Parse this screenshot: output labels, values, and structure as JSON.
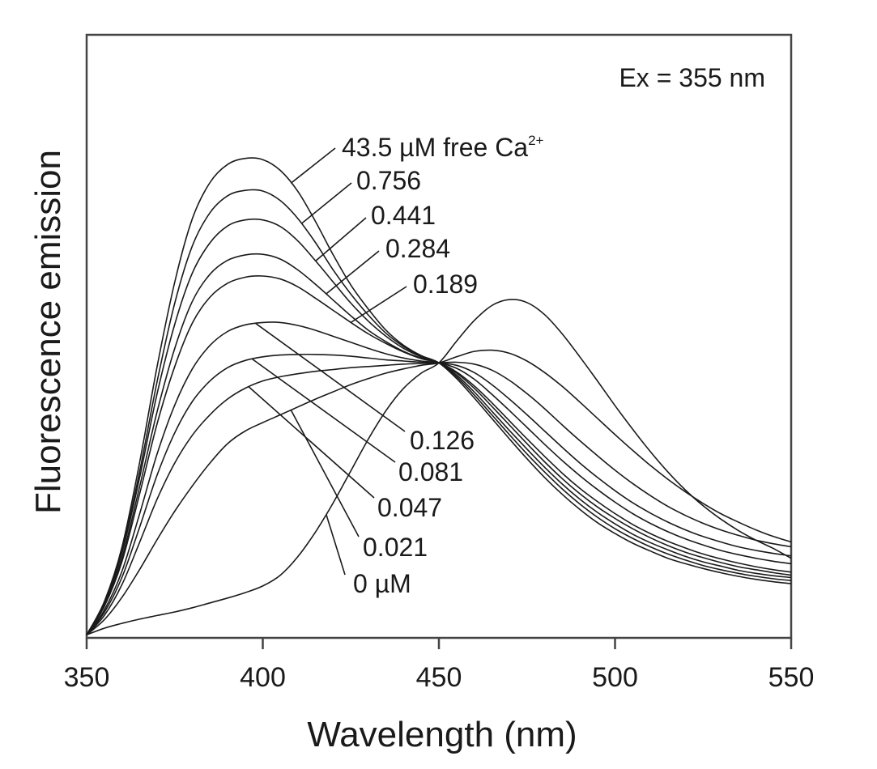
{
  "chart_data": {
    "type": "line",
    "title": "",
    "xlabel": "Wavelength (nm)",
    "ylabel": "Fluorescence emission",
    "xlim": [
      350,
      550
    ],
    "ylim": [
      0,
      100
    ],
    "xticks": [
      350,
      400,
      450,
      500,
      550
    ],
    "xtick_labels": [
      "350",
      "400",
      "450",
      "500",
      "550"
    ],
    "yticks": [],
    "grid": false,
    "annotation": "Ex = 355 nm",
    "line_color": "#1a1a1a",
    "x": [
      350,
      355,
      360,
      365,
      370,
      375,
      380,
      385,
      390,
      395,
      400,
      405,
      410,
      415,
      420,
      425,
      430,
      435,
      440,
      445,
      450,
      455,
      460,
      465,
      470,
      475,
      480,
      485,
      490,
      495,
      500,
      505,
      510,
      515,
      520,
      525,
      530,
      535,
      540,
      545,
      550
    ],
    "series": [
      {
        "name": "43.5 µM free Ca2+",
        "label_main": "43.5 µM free Ca",
        "label_sup": "2+",
        "values": [
          0.5,
          6,
          15,
          29,
          45,
          59,
          69.5,
          75.5,
          78.5,
          79.5,
          79.3,
          77.5,
          74,
          69,
          63.5,
          58.5,
          54.5,
          51,
          48.5,
          46.8,
          45.6,
          43,
          39.8,
          36.4,
          33,
          29.7,
          26.6,
          23.8,
          21.3,
          19.1,
          17.3,
          15.7,
          14.4,
          13.2,
          12.3,
          11.5,
          10.8,
          10.2,
          9.7,
          9.3,
          9
        ]
      },
      {
        "name": "0.756",
        "label_main": "0.756",
        "values": [
          0.5,
          5.8,
          14.5,
          27.5,
          42.5,
          55.5,
          65,
          70.5,
          73.3,
          74.2,
          74.1,
          72.5,
          69.5,
          65.5,
          61,
          57,
          53.5,
          50.5,
          48.3,
          46.7,
          45.6,
          43.3,
          40.3,
          37,
          33.7,
          30.5,
          27.5,
          24.7,
          22.2,
          20,
          18.1,
          16.5,
          15.1,
          13.9,
          12.9,
          12,
          11.3,
          10.7,
          10.2,
          9.8,
          9.5
        ]
      },
      {
        "name": "0.441",
        "label_main": "0.441",
        "values": [
          0.5,
          5.6,
          14,
          26.5,
          40.5,
          52,
          60.5,
          65.5,
          68.3,
          69.3,
          69.3,
          68.2,
          65.8,
          62.5,
          59,
          55.5,
          52.5,
          50,
          48,
          46.6,
          45.6,
          43.6,
          40.8,
          37.6,
          34.4,
          31.3,
          28.3,
          25.5,
          23,
          20.8,
          18.9,
          17.2,
          15.8,
          14.6,
          13.5,
          12.6,
          11.9,
          11.2,
          10.7,
          10.3,
          10
        ]
      },
      {
        "name": "0.284",
        "label_main": "0.284",
        "values": [
          0.5,
          5.4,
          13.2,
          25,
          37.5,
          48,
          55.8,
          60.3,
          62.6,
          63.5,
          63.6,
          62.8,
          61,
          58.6,
          56,
          53.4,
          51,
          49.1,
          47.5,
          46.4,
          45.6,
          43.9,
          41.4,
          38.4,
          35.3,
          32.2,
          29.2,
          26.4,
          23.9,
          21.7,
          19.8,
          18.1,
          16.6,
          15.3,
          14.2,
          13.3,
          12.5,
          11.8,
          11.3,
          10.8,
          10.4
        ]
      },
      {
        "name": "0.189",
        "label_main": "0.189",
        "values": [
          0.5,
          5.2,
          12.6,
          23.8,
          35.5,
          45,
          52.2,
          56.5,
          58.8,
          59.8,
          60,
          59.5,
          58.2,
          56.3,
          54.3,
          52.3,
          50.4,
          48.8,
          47.4,
          46.3,
          45.6,
          44.1,
          41.8,
          39,
          36,
          33,
          30.1,
          27.3,
          24.8,
          22.6,
          20.6,
          18.8,
          17.3,
          16,
          14.9,
          13.9,
          13.1,
          12.4,
          11.8,
          11.3,
          10.9
        ]
      },
      {
        "name": "0.126",
        "label_main": "0.126",
        "values": [
          0.5,
          4.6,
          11,
          20.5,
          30.5,
          38.6,
          44.6,
          48.5,
          50.8,
          51.9,
          52.3,
          52.3,
          51.8,
          51,
          50,
          49,
          48,
          47.1,
          46.4,
          45.9,
          45.6,
          44.7,
          42.9,
          40.4,
          37.7,
          34.9,
          32.1,
          29.4,
          26.9,
          24.6,
          22.5,
          20.6,
          19,
          17.6,
          16.4,
          15.4,
          14.5,
          13.8,
          13.2,
          12.7,
          12.3
        ]
      },
      {
        "name": "0.081",
        "label_main": "0.081",
        "values": [
          0.5,
          4.2,
          10,
          18.3,
          27,
          34,
          39.2,
          42.6,
          44.8,
          46,
          46.6,
          46.9,
          47,
          47,
          46.9,
          46.7,
          46.4,
          46.1,
          45.9,
          45.7,
          45.6,
          45.2,
          44,
          42,
          39.6,
          37,
          34.3,
          31.6,
          29,
          26.6,
          24.4,
          22.4,
          20.7,
          19.2,
          17.9,
          16.8,
          15.9,
          15.1,
          14.5,
          14,
          13.6
        ]
      },
      {
        "name": "0.047",
        "label_main": "0.047",
        "values": [
          0.5,
          3.7,
          8.8,
          15.8,
          23,
          29,
          33.6,
          37,
          39.6,
          41.4,
          42.6,
          43.3,
          43.8,
          44.2,
          44.5,
          44.8,
          45,
          45.2,
          45.4,
          45.5,
          45.6,
          45.7,
          45.4,
          44.4,
          42.7,
          40.5,
          38,
          35.3,
          32.7,
          30.2,
          27.8,
          25.6,
          23.6,
          21.8,
          20.3,
          19,
          17.9,
          17,
          16.2,
          15.6,
          15.1
        ]
      },
      {
        "name": "0.021",
        "label_main": "0.021",
        "values": [
          0.5,
          3,
          6.7,
          11.3,
          16.3,
          21,
          25.2,
          29,
          32.2,
          34.3,
          35.7,
          37,
          38.3,
          39.6,
          40.8,
          42,
          43,
          43.9,
          44.6,
          45.2,
          45.6,
          46.6,
          47.5,
          47.7,
          47.2,
          45.9,
          44,
          41.7,
          39.1,
          36.4,
          33.7,
          31.1,
          28.6,
          26.3,
          24.2,
          22.3,
          20.6,
          19.2,
          17.9,
          16.8,
          15.9
        ]
      },
      {
        "name": "0 µM",
        "label_main": "0 µM",
        "values": [
          0.5,
          1.6,
          2.4,
          3.1,
          3.7,
          4.3,
          5,
          5.8,
          6.6,
          7.5,
          8.6,
          10.4,
          13.5,
          17.6,
          22.4,
          27.7,
          33,
          37.7,
          41.4,
          43.9,
          45.6,
          49.2,
          52.6,
          55.1,
          56.1,
          55.6,
          53.6,
          50.4,
          46.6,
          42.6,
          38.5,
          34.6,
          30.9,
          27.5,
          24.5,
          21.9,
          19.7,
          17.8,
          16.2,
          14.8,
          13.2
        ]
      }
    ]
  }
}
